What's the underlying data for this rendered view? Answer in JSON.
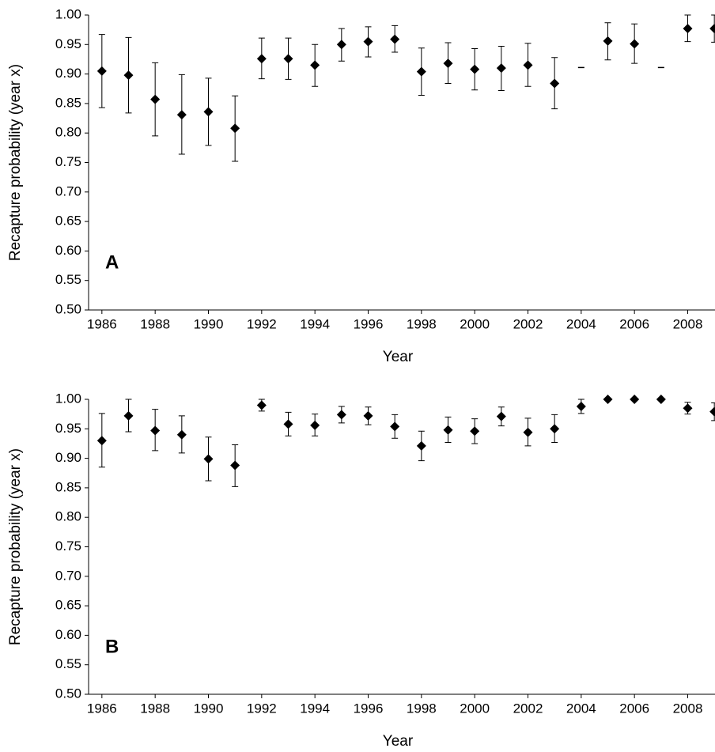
{
  "chart_data": [
    {
      "type": "scatter",
      "annotation": "A",
      "ylabel": "Recapture probability (year x)",
      "xlabel": "Year",
      "x": [
        1986,
        1987,
        1988,
        1989,
        1990,
        1991,
        1992,
        1993,
        1994,
        1995,
        1996,
        1997,
        1998,
        1999,
        2000,
        2001,
        2002,
        2003,
        2004,
        2005,
        2006,
        2007,
        2008,
        2009
      ],
      "values": [
        0.905,
        0.898,
        0.857,
        0.831,
        0.836,
        0.808,
        0.926,
        0.926,
        0.915,
        0.95,
        0.955,
        0.959,
        0.904,
        0.918,
        0.908,
        0.91,
        0.915,
        0.884,
        0.911,
        0.956,
        0.951,
        0.911,
        0.977,
        0.977
      ],
      "lower": [
        0.843,
        0.834,
        0.795,
        0.764,
        0.779,
        0.752,
        0.892,
        0.891,
        0.879,
        0.922,
        0.929,
        0.937,
        0.864,
        0.884,
        0.873,
        0.872,
        0.879,
        0.841,
        null,
        0.924,
        0.918,
        null,
        0.955,
        0.954
      ],
      "upper": [
        0.967,
        0.962,
        0.919,
        0.899,
        0.893,
        0.863,
        0.961,
        0.961,
        0.95,
        0.977,
        0.98,
        0.982,
        0.944,
        0.953,
        0.943,
        0.947,
        0.952,
        0.928,
        null,
        0.987,
        0.985,
        null,
        1.0,
        1.0
      ],
      "markers": [
        "diamond",
        "diamond",
        "diamond",
        "diamond",
        "diamond",
        "diamond",
        "diamond",
        "diamond",
        "diamond",
        "diamond",
        "diamond",
        "diamond",
        "diamond",
        "diamond",
        "diamond",
        "diamond",
        "diamond",
        "diamond",
        "dash",
        "diamond",
        "diamond",
        "dash",
        "diamond",
        "diamond"
      ],
      "color": "#000000",
      "xlim": [
        1985.5,
        2009.5
      ],
      "xticks": [
        1986,
        1988,
        1990,
        1992,
        1994,
        1996,
        1998,
        2000,
        2002,
        2004,
        2006,
        2008
      ],
      "ylim": [
        0.5,
        1.0
      ],
      "yticks": [
        {
          "value": 0.5,
          "label": "0.50"
        },
        {
          "value": 0.55,
          "label": "0.55"
        },
        {
          "value": 0.6,
          "label": "0.60"
        },
        {
          "value": 0.65,
          "label": "0.65"
        },
        {
          "value": 0.7,
          "label": "0.70"
        },
        {
          "value": 0.75,
          "label": "0.75"
        },
        {
          "value": 0.8,
          "label": "0.80"
        },
        {
          "value": 0.85,
          "label": "0.85"
        },
        {
          "value": 0.9,
          "label": "0.90"
        },
        {
          "value": 0.95,
          "label": "0.95"
        },
        {
          "value": 1.0,
          "label": "1.00"
        }
      ]
    },
    {
      "type": "scatter",
      "annotation": "B",
      "ylabel": "Recapture probability (year x)",
      "xlabel": "Year",
      "x": [
        1986,
        1987,
        1988,
        1989,
        1990,
        1991,
        1992,
        1993,
        1994,
        1995,
        1996,
        1997,
        1998,
        1999,
        2000,
        2001,
        2002,
        2003,
        2004,
        2005,
        2006,
        2007,
        2008,
        2009
      ],
      "values": [
        0.93,
        0.972,
        0.947,
        0.94,
        0.899,
        0.888,
        0.99,
        0.958,
        0.956,
        0.974,
        0.972,
        0.954,
        0.921,
        0.948,
        0.946,
        0.971,
        0.944,
        0.95,
        0.988,
        1.0,
        1.0,
        1.0,
        0.985,
        0.979
      ],
      "lower": [
        0.885,
        0.945,
        0.913,
        0.909,
        0.862,
        0.852,
        0.98,
        0.938,
        0.938,
        0.96,
        0.957,
        0.934,
        0.896,
        0.927,
        0.925,
        0.955,
        0.921,
        0.927,
        0.976,
        null,
        null,
        null,
        0.975,
        0.964
      ],
      "upper": [
        0.976,
        1.0,
        0.983,
        0.972,
        0.936,
        0.923,
        1.0,
        0.978,
        0.975,
        0.988,
        0.987,
        0.974,
        0.946,
        0.97,
        0.967,
        0.987,
        0.968,
        0.974,
        1.0,
        null,
        null,
        null,
        0.995,
        0.994
      ],
      "markers": [
        "diamond",
        "diamond",
        "diamond",
        "diamond",
        "diamond",
        "diamond",
        "diamond",
        "diamond",
        "diamond",
        "diamond",
        "diamond",
        "diamond",
        "diamond",
        "diamond",
        "diamond",
        "diamond",
        "diamond",
        "diamond",
        "diamond",
        "diamond",
        "diamond",
        "diamond",
        "diamond",
        "diamond"
      ],
      "color": "#000000",
      "xlim": [
        1985.5,
        2009.5
      ],
      "xticks": [
        1986,
        1988,
        1990,
        1992,
        1994,
        1996,
        1998,
        2000,
        2002,
        2004,
        2006,
        2008
      ],
      "ylim": [
        0.5,
        1.0
      ],
      "yticks": [
        {
          "value": 0.5,
          "label": "0.50"
        },
        {
          "value": 0.55,
          "label": "0.55"
        },
        {
          "value": 0.6,
          "label": "0.60"
        },
        {
          "value": 0.65,
          "label": "0.65"
        },
        {
          "value": 0.7,
          "label": "0.70"
        },
        {
          "value": 0.75,
          "label": "0.75"
        },
        {
          "value": 0.8,
          "label": "0.80"
        },
        {
          "value": 0.85,
          "label": "0.85"
        },
        {
          "value": 0.9,
          "label": "0.90"
        },
        {
          "value": 0.95,
          "label": "0.95"
        },
        {
          "value": 1.0,
          "label": "1.00"
        }
      ]
    }
  ]
}
